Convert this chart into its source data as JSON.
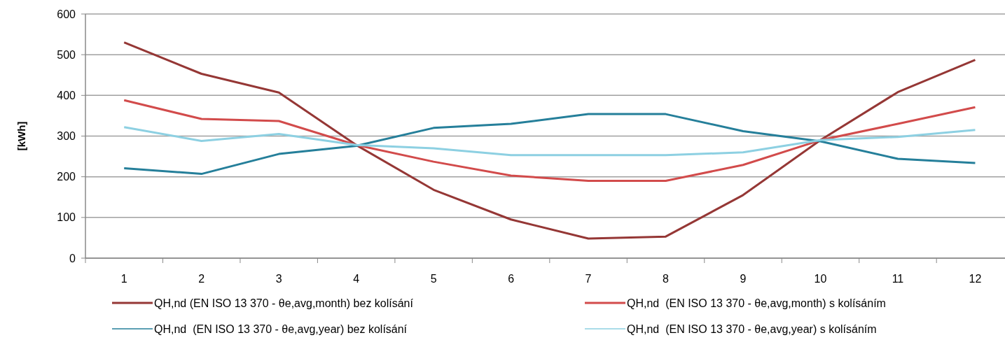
{
  "chart_data": {
    "type": "line",
    "ylabel": "[kWh]",
    "categories": [
      "1",
      "2",
      "3",
      "4",
      "5",
      "6",
      "7",
      "8",
      "9",
      "10",
      "11",
      "12"
    ],
    "ylim": [
      0,
      600
    ],
    "yticks": [
      0,
      100,
      200,
      300,
      400,
      500,
      600
    ],
    "grid": "y",
    "legend": "bottom",
    "marker": "none",
    "line_style": "solid",
    "series": [
      {
        "name": "QH,nd (EN ISO 13 370 - θe,avg,month) bez kolísání",
        "color": "#953735",
        "values": [
          530,
          453,
          407,
          278,
          168,
          95,
          48,
          53,
          155,
          290,
          408,
          487
        ]
      },
      {
        "name": "QH,nd  (EN ISO 13 370 - θe,avg,month) s kolísáním",
        "color": "#d24b4b",
        "values": [
          388,
          342,
          337,
          278,
          237,
          203,
          190,
          190,
          229,
          290,
          330,
          371
        ]
      },
      {
        "name": "QH,nd  (EN ISO 13 370 - θe,avg,year) bez kolísání",
        "color": "#257f9a",
        "values": [
          221,
          207,
          256,
          276,
          320,
          330,
          354,
          354,
          312,
          287,
          244,
          234
        ]
      },
      {
        "name": "QH,nd  (EN ISO 13 370 - θe,avg,year) s kolísáním",
        "color": "#8dd0e2",
        "values": [
          322,
          288,
          305,
          278,
          270,
          253,
          253,
          253,
          260,
          290,
          298,
          315
        ]
      }
    ]
  }
}
